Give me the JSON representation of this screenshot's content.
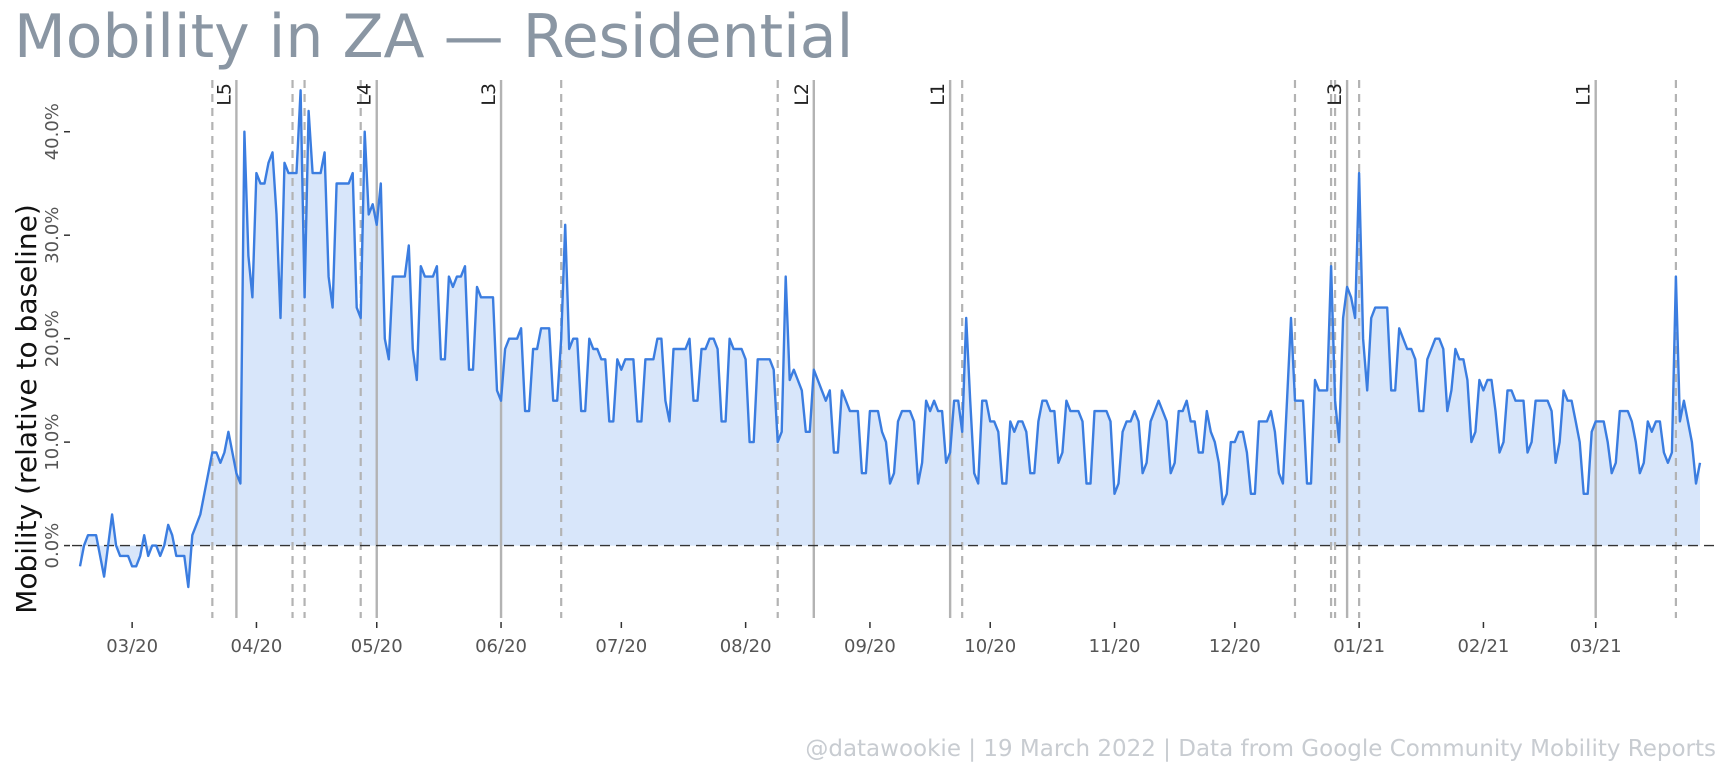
{
  "title": "Mobility in ZA — Residential",
  "caption": "@datawookie | 19 March 2022 | Data from Google Community Mobility Reports",
  "colors": {
    "line": "#3b7de0",
    "fill": "#d8e6fa",
    "event": "#b3b3b3",
    "zero": "#333333"
  },
  "chart_data": {
    "type": "area",
    "ylabel": "Mobility (relative to baseline)",
    "ylim": [
      -0.07,
      0.45
    ],
    "yticks": [
      0,
      0.1,
      0.2,
      0.3,
      0.4
    ],
    "ytick_labels": [
      "0.0%",
      "10.0%",
      "20.0%",
      "30.0%",
      "40.0%"
    ],
    "xlim": [
      "2020-02-15",
      "2021-03-31"
    ],
    "xticks": [
      "2020-03-01",
      "2020-04-01",
      "2020-05-01",
      "2020-06-01",
      "2020-07-01",
      "2020-08-01",
      "2020-09-01",
      "2020-10-01",
      "2020-11-01",
      "2020-12-01",
      "2021-01-01",
      "2021-02-01",
      "2021-03-01"
    ],
    "xtick_labels": [
      "03/20",
      "04/20",
      "05/20",
      "06/20",
      "07/20",
      "08/20",
      "09/20",
      "10/20",
      "11/20",
      "12/20",
      "01/21",
      "02/21",
      "03/21"
    ],
    "grid": false,
    "reference_line": {
      "y": 0,
      "style": "dashed"
    },
    "level_changes": [
      {
        "date": "2020-03-27",
        "label": "L5"
      },
      {
        "date": "2020-05-01",
        "label": "L4"
      },
      {
        "date": "2020-06-01",
        "label": "L3"
      },
      {
        "date": "2020-08-18",
        "label": "L2"
      },
      {
        "date": "2020-09-21",
        "label": "L1"
      },
      {
        "date": "2020-12-29",
        "label": "L3"
      },
      {
        "date": "2021-03-01",
        "label": "L1"
      }
    ],
    "holidays": [
      "2020-03-21",
      "2020-04-10",
      "2020-04-13",
      "2020-04-27",
      "2020-06-16",
      "2020-08-09",
      "2020-09-24",
      "2020-12-16",
      "2020-12-25",
      "2020-12-26",
      "2021-01-01",
      "2021-03-21"
    ],
    "series": [
      {
        "start_date": "2020-02-17",
        "values": [
          -0.02,
          0,
          0.01,
          0.01,
          0.01,
          -0.01,
          -0.03,
          0,
          0.03,
          0,
          -0.01,
          -0.01,
          -0.01,
          -0.02,
          -0.02,
          -0.01,
          0.01,
          -0.01,
          0,
          0,
          -0.01,
          0,
          0.02,
          0.01,
          -0.01,
          -0.01,
          -0.01,
          -0.04,
          0.01,
          0.02,
          0.03,
          0.05,
          0.07,
          0.09,
          0.09,
          0.08,
          0.09,
          0.11,
          0.09,
          0.07,
          0.06,
          0.4,
          0.28,
          0.24,
          0.36,
          0.35,
          0.35,
          0.37,
          0.38,
          0.32,
          0.22,
          0.37,
          0.36,
          0.36,
          0.36,
          0.44,
          0.24,
          0.42,
          0.36,
          0.36,
          0.36,
          0.38,
          0.26,
          0.23,
          0.35,
          0.35,
          0.35,
          0.35,
          0.36,
          0.23,
          0.22,
          0.4,
          0.32,
          0.33,
          0.31,
          0.35,
          0.2,
          0.18,
          0.26,
          0.26,
          0.26,
          0.26,
          0.29,
          0.19,
          0.16,
          0.27,
          0.26,
          0.26,
          0.26,
          0.27,
          0.18,
          0.18,
          0.26,
          0.25,
          0.26,
          0.26,
          0.27,
          0.17,
          0.17,
          0.25,
          0.24,
          0.24,
          0.24,
          0.24,
          0.15,
          0.14,
          0.19,
          0.2,
          0.2,
          0.2,
          0.21,
          0.13,
          0.13,
          0.19,
          0.19,
          0.21,
          0.21,
          0.21,
          0.14,
          0.14,
          0.2,
          0.31,
          0.19,
          0.2,
          0.2,
          0.13,
          0.13,
          0.2,
          0.19,
          0.19,
          0.18,
          0.18,
          0.12,
          0.12,
          0.18,
          0.17,
          0.18,
          0.18,
          0.18,
          0.12,
          0.12,
          0.18,
          0.18,
          0.18,
          0.2,
          0.2,
          0.14,
          0.12,
          0.19,
          0.19,
          0.19,
          0.19,
          0.2,
          0.14,
          0.14,
          0.19,
          0.19,
          0.2,
          0.2,
          0.19,
          0.12,
          0.12,
          0.2,
          0.19,
          0.19,
          0.19,
          0.18,
          0.1,
          0.1,
          0.18,
          0.18,
          0.18,
          0.18,
          0.17,
          0.1,
          0.11,
          0.26,
          0.16,
          0.17,
          0.16,
          0.15,
          0.11,
          0.11,
          0.17,
          0.16,
          0.15,
          0.14,
          0.15,
          0.09,
          0.09,
          0.15,
          0.14,
          0.13,
          0.13,
          0.13,
          0.07,
          0.07,
          0.13,
          0.13,
          0.13,
          0.11,
          0.1,
          0.06,
          0.07,
          0.12,
          0.13,
          0.13,
          0.13,
          0.12,
          0.06,
          0.08,
          0.14,
          0.13,
          0.14,
          0.13,
          0.13,
          0.08,
          0.09,
          0.14,
          0.14,
          0.11,
          0.22,
          0.14,
          0.07,
          0.06,
          0.14,
          0.14,
          0.12,
          0.12,
          0.11,
          0.06,
          0.06,
          0.12,
          0.11,
          0.12,
          0.12,
          0.11,
          0.07,
          0.07,
          0.12,
          0.14,
          0.14,
          0.13,
          0.13,
          0.08,
          0.09,
          0.14,
          0.13,
          0.13,
          0.13,
          0.12,
          0.06,
          0.06,
          0.13,
          0.13,
          0.13,
          0.13,
          0.12,
          0.05,
          0.06,
          0.11,
          0.12,
          0.12,
          0.13,
          0.12,
          0.07,
          0.08,
          0.12,
          0.13,
          0.14,
          0.13,
          0.12,
          0.07,
          0.08,
          0.13,
          0.13,
          0.14,
          0.12,
          0.12,
          0.09,
          0.09,
          0.13,
          0.11,
          0.1,
          0.08,
          0.04,
          0.05,
          0.1,
          0.1,
          0.11,
          0.11,
          0.09,
          0.05,
          0.05,
          0.12,
          0.12,
          0.12,
          0.13,
          0.11,
          0.07,
          0.06,
          0.14,
          0.22,
          0.14,
          0.14,
          0.14,
          0.06,
          0.06,
          0.16,
          0.15,
          0.15,
          0.15,
          0.27,
          0.14,
          0.1,
          0.22,
          0.25,
          0.24,
          0.22,
          0.36,
          0.2,
          0.15,
          0.22,
          0.23,
          0.23,
          0.23,
          0.23,
          0.15,
          0.15,
          0.21,
          0.2,
          0.19,
          0.19,
          0.18,
          0.13,
          0.13,
          0.18,
          0.19,
          0.2,
          0.2,
          0.19,
          0.13,
          0.15,
          0.19,
          0.18,
          0.18,
          0.16,
          0.1,
          0.11,
          0.16,
          0.15,
          0.16,
          0.16,
          0.13,
          0.09,
          0.1,
          0.15,
          0.15,
          0.14,
          0.14,
          0.14,
          0.09,
          0.1,
          0.14,
          0.14,
          0.14,
          0.14,
          0.13,
          0.08,
          0.1,
          0.15,
          0.14,
          0.14,
          0.12,
          0.1,
          0.05,
          0.05,
          0.11,
          0.12,
          0.12,
          0.12,
          0.1,
          0.07,
          0.08,
          0.13,
          0.13,
          0.13,
          0.12,
          0.1,
          0.07,
          0.08,
          0.12,
          0.11,
          0.12,
          0.12,
          0.09,
          0.08,
          0.09,
          0.26,
          0.12,
          0.14,
          0.12,
          0.1,
          0.06,
          0.08
        ]
      }
    ]
  }
}
